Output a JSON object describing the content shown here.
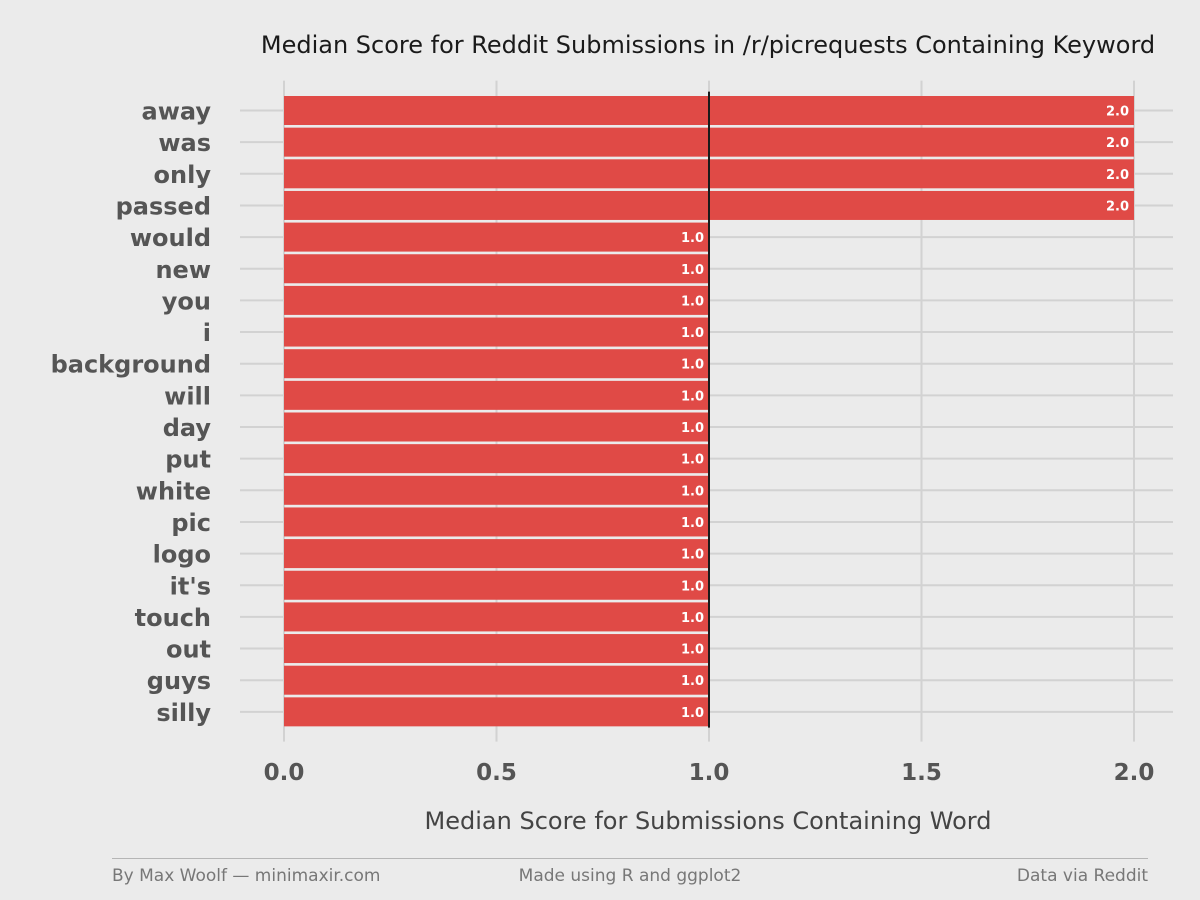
{
  "chart_data": {
    "type": "bar",
    "orientation": "horizontal",
    "title": "Median Score for Reddit Submissions in /r/picrequests Containing Keyword",
    "xlabel": "Median Score for Submissions Containing Word",
    "ylabel": "",
    "xlim": [
      0,
      2
    ],
    "xticks": [
      "0.0",
      "0.5",
      "1.0",
      "1.5",
      "2.0"
    ],
    "reference_line_x": 1.0,
    "bar_color": "#e04a46",
    "grid": true,
    "categories": [
      "away",
      "was",
      "only",
      "passed",
      "would",
      "new",
      "you",
      "i",
      "background",
      "will",
      "day",
      "put",
      "white",
      "pic",
      "logo",
      "it's",
      "touch",
      "out",
      "guys",
      "silly"
    ],
    "values": [
      2.0,
      2.0,
      2.0,
      2.0,
      1.0,
      1.0,
      1.0,
      1.0,
      1.0,
      1.0,
      1.0,
      1.0,
      1.0,
      1.0,
      1.0,
      1.0,
      1.0,
      1.0,
      1.0,
      1.0
    ],
    "value_labels": [
      "2.0",
      "2.0",
      "2.0",
      "2.0",
      "1.0",
      "1.0",
      "1.0",
      "1.0",
      "1.0",
      "1.0",
      "1.0",
      "1.0",
      "1.0",
      "1.0",
      "1.0",
      "1.0",
      "1.0",
      "1.0",
      "1.0",
      "1.0"
    ]
  },
  "footer": {
    "left": "By Max Woolf — minimaxir.com",
    "center": "Made using R and ggplot2",
    "right": "Data via Reddit"
  }
}
